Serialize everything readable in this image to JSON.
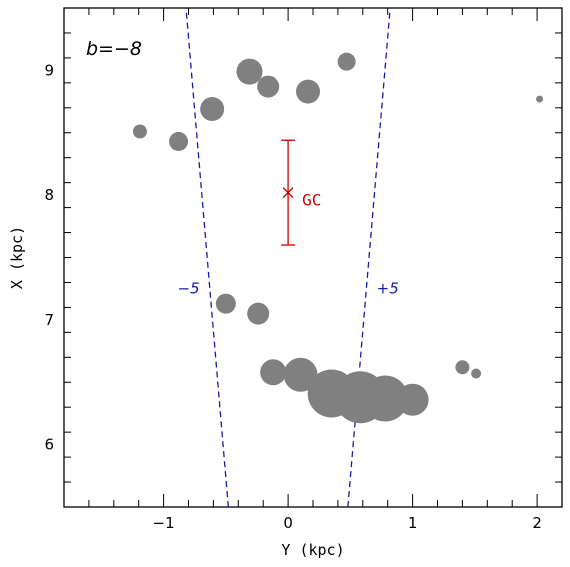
{
  "chart_data": {
    "type": "scatter",
    "panel_label": "b=−8",
    "xlabel": "Y (kpc)",
    "ylabel": "X (kpc)",
    "xlim": [
      -1.8,
      2.2
    ],
    "ylim": [
      5.5,
      9.5
    ],
    "x_ticks": [
      -1,
      0,
      1,
      2
    ],
    "x_tick_labels": [
      "−1",
      "0",
      "1",
      "2"
    ],
    "y_ticks": [
      6,
      7,
      8,
      9
    ],
    "y_tick_labels": [
      "6",
      "7",
      "8",
      "9"
    ],
    "point_color": "#808080",
    "points": [
      {
        "x": 0.47,
        "y": 9.07,
        "r": 9
      },
      {
        "x": -0.31,
        "y": 8.99,
        "r": 13
      },
      {
        "x": -0.16,
        "y": 8.87,
        "r": 11
      },
      {
        "x": 0.16,
        "y": 8.83,
        "r": 12
      },
      {
        "x": -0.61,
        "y": 8.69,
        "r": 12
      },
      {
        "x": -1.19,
        "y": 8.51,
        "r": 7
      },
      {
        "x": -0.88,
        "y": 8.43,
        "r": 9.5
      },
      {
        "x": 2.02,
        "y": 8.77,
        "r": 3.5
      },
      {
        "x": -0.5,
        "y": 7.13,
        "r": 10
      },
      {
        "x": -0.24,
        "y": 7.05,
        "r": 11
      },
      {
        "x": -0.12,
        "y": 6.58,
        "r": 13
      },
      {
        "x": 0.1,
        "y": 6.56,
        "r": 17
      },
      {
        "x": 0.35,
        "y": 6.41,
        "r": 24
      },
      {
        "x": 0.58,
        "y": 6.38,
        "r": 26
      },
      {
        "x": 0.78,
        "y": 6.37,
        "r": 23
      },
      {
        "x": 1.0,
        "y": 6.36,
        "r": 16
      },
      {
        "x": 1.4,
        "y": 6.62,
        "r": 7
      },
      {
        "x": 1.51,
        "y": 6.57,
        "r": 5
      }
    ],
    "gc_marker": {
      "label": "GC",
      "x": 0,
      "y": 8.02,
      "error_low": 7.6,
      "error_high": 8.44,
      "color": "#cc0000"
    },
    "boundary_lines": [
      {
        "label": "−5",
        "x1": -0.48,
        "y1": 5.5,
        "x2": -0.82,
        "y2": 9.5
      },
      {
        "label": "+5",
        "x1": 0.48,
        "y1": 5.5,
        "x2": 0.82,
        "y2": 9.5
      }
    ],
    "line_color": "#1a1aa8",
    "line_labels": [
      {
        "text": "−5",
        "x": -0.8,
        "y": 7.21
      },
      {
        "text": "+5",
        "x": 0.8,
        "y": 7.21
      }
    ]
  }
}
